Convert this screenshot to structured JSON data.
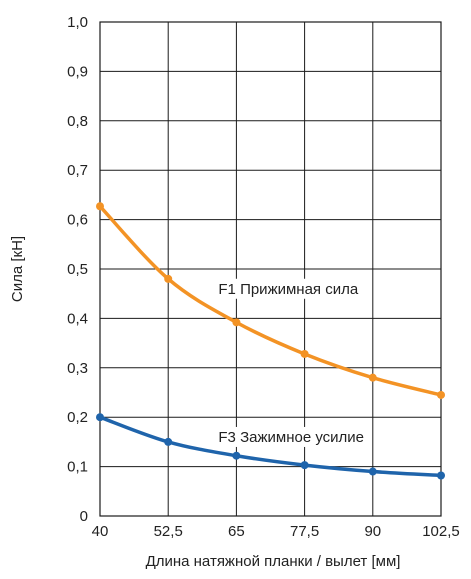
{
  "chart_data": {
    "type": "line",
    "xlabel": "Длина натяжной планки / вылет [мм]",
    "ylabel": "Сила [кН]",
    "x_ticks": [
      "40",
      "52,5",
      "65",
      "77,5",
      "90",
      "102,5"
    ],
    "x_tick_values": [
      40,
      52.5,
      65,
      77.5,
      90,
      102.5
    ],
    "y_ticks": [
      "0",
      "0,1",
      "0,2",
      "0,3",
      "0,4",
      "0,5",
      "0,6",
      "0,7",
      "0,8",
      "0,9",
      "1,0"
    ],
    "y_tick_values": [
      0,
      0.1,
      0.2,
      0.3,
      0.4,
      0.5,
      0.6,
      0.7,
      0.8,
      0.9,
      1.0
    ],
    "xlim": [
      40,
      102.5
    ],
    "ylim": [
      0,
      1.0
    ],
    "grid": true,
    "series": [
      {
        "name": "F1 Прижимная сила",
        "color": "#f39325",
        "label_at": [
          65,
          0.46
        ],
        "points": [
          {
            "x": 40,
            "y": 0.627
          },
          {
            "x": 52.5,
            "y": 0.48
          },
          {
            "x": 65,
            "y": 0.392
          },
          {
            "x": 77.5,
            "y": 0.328
          },
          {
            "x": 90,
            "y": 0.28
          },
          {
            "x": 102.5,
            "y": 0.245
          }
        ]
      },
      {
        "name": "F3 Зажимное усилие",
        "color": "#1f64ab",
        "label_at": [
          65,
          0.16
        ],
        "points": [
          {
            "x": 40,
            "y": 0.2
          },
          {
            "x": 52.5,
            "y": 0.15
          },
          {
            "x": 65,
            "y": 0.122
          },
          {
            "x": 77.5,
            "y": 0.103
          },
          {
            "x": 90,
            "y": 0.09
          },
          {
            "x": 102.5,
            "y": 0.082
          }
        ]
      }
    ]
  }
}
